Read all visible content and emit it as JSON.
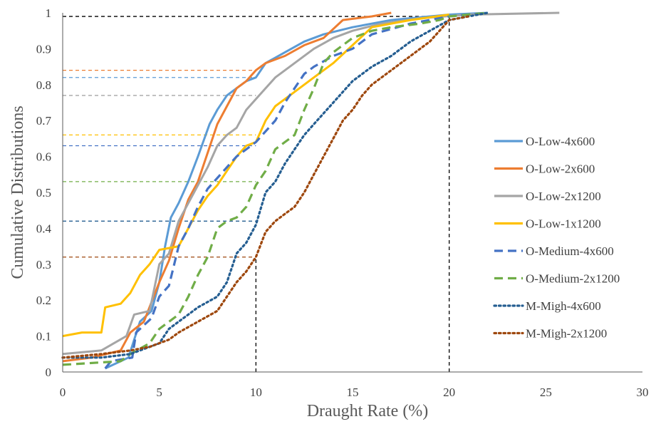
{
  "chart_data": {
    "type": "line",
    "title": "",
    "xlabel": "Draught Rate (%)",
    "ylabel": "Cumulative Distributions",
    "xlim": [
      0,
      30
    ],
    "ylim": [
      0,
      1
    ],
    "x_ticks": [
      "0",
      "5",
      "10",
      "15",
      "20",
      "25",
      "30"
    ],
    "y_ticks": [
      "0",
      "0.1",
      "0.2",
      "0.3",
      "0.4",
      "0.5",
      "0.6",
      "0.7",
      "0.8",
      "0.9",
      "1"
    ],
    "grid": false,
    "legend_position": "right",
    "series": [
      {
        "name": "O-Low-4x600",
        "color": "#5B9BD5",
        "style": "solid",
        "points": [
          [
            2.2,
            0.01
          ],
          [
            3.4,
            0.04
          ],
          [
            4.0,
            0.14
          ],
          [
            4.6,
            0.17
          ],
          [
            5.0,
            0.25
          ],
          [
            5.3,
            0.35
          ],
          [
            5.6,
            0.43
          ],
          [
            6.0,
            0.47
          ],
          [
            6.5,
            0.53
          ],
          [
            7.0,
            0.6
          ],
          [
            7.6,
            0.69
          ],
          [
            8.0,
            0.73
          ],
          [
            8.5,
            0.77
          ],
          [
            9.0,
            0.79
          ],
          [
            9.5,
            0.81
          ],
          [
            10.0,
            0.82
          ],
          [
            10.5,
            0.86
          ],
          [
            11.5,
            0.89
          ],
          [
            12.5,
            0.92
          ],
          [
            13.5,
            0.94
          ],
          [
            15.0,
            0.96
          ],
          [
            17.0,
            0.98
          ],
          [
            20.0,
            0.995
          ],
          [
            22.0,
            1.0
          ]
        ]
      },
      {
        "name": "O-Low-2x600",
        "color": "#ED7D31",
        "style": "solid",
        "points": [
          [
            0.0,
            0.03
          ],
          [
            1.5,
            0.04
          ],
          [
            3.0,
            0.06
          ],
          [
            3.5,
            0.11
          ],
          [
            4.2,
            0.14
          ],
          [
            5.0,
            0.25
          ],
          [
            5.5,
            0.31
          ],
          [
            6.0,
            0.4
          ],
          [
            6.5,
            0.48
          ],
          [
            7.0,
            0.53
          ],
          [
            7.5,
            0.61
          ],
          [
            8.0,
            0.69
          ],
          [
            8.5,
            0.74
          ],
          [
            9.0,
            0.79
          ],
          [
            9.5,
            0.81
          ],
          [
            10.0,
            0.84
          ],
          [
            10.5,
            0.86
          ],
          [
            11.5,
            0.88
          ],
          [
            12.5,
            0.91
          ],
          [
            13.5,
            0.93
          ],
          [
            14.5,
            0.98
          ],
          [
            16.0,
            0.99
          ],
          [
            17.0,
            1.0
          ]
        ]
      },
      {
        "name": "O-Low-2x1200",
        "color": "#A5A5A5",
        "style": "solid",
        "points": [
          [
            0.0,
            0.05
          ],
          [
            2.0,
            0.06
          ],
          [
            3.3,
            0.1
          ],
          [
            3.7,
            0.16
          ],
          [
            4.5,
            0.17
          ],
          [
            5.0,
            0.3
          ],
          [
            5.5,
            0.33
          ],
          [
            6.0,
            0.42
          ],
          [
            6.5,
            0.47
          ],
          [
            7.0,
            0.52
          ],
          [
            7.5,
            0.57
          ],
          [
            8.0,
            0.63
          ],
          [
            8.5,
            0.66
          ],
          [
            9.0,
            0.68
          ],
          [
            9.5,
            0.73
          ],
          [
            10.0,
            0.76
          ],
          [
            11.0,
            0.82
          ],
          [
            12.0,
            0.86
          ],
          [
            13.0,
            0.9
          ],
          [
            14.0,
            0.93
          ],
          [
            15.0,
            0.95
          ],
          [
            16.5,
            0.97
          ],
          [
            18.5,
            0.985
          ],
          [
            21.0,
            0.995
          ],
          [
            25.7,
            1.0
          ]
        ]
      },
      {
        "name": "O-Low-1x1200",
        "color": "#FFC000",
        "style": "solid",
        "points": [
          [
            0.0,
            0.1
          ],
          [
            1.0,
            0.11
          ],
          [
            2.0,
            0.11
          ],
          [
            2.2,
            0.18
          ],
          [
            3.0,
            0.19
          ],
          [
            3.5,
            0.22
          ],
          [
            4.0,
            0.27
          ],
          [
            4.5,
            0.3
          ],
          [
            5.0,
            0.34
          ],
          [
            6.0,
            0.35
          ],
          [
            6.5,
            0.4
          ],
          [
            7.0,
            0.45
          ],
          [
            7.5,
            0.49
          ],
          [
            8.0,
            0.52
          ],
          [
            8.5,
            0.56
          ],
          [
            9.0,
            0.6
          ],
          [
            9.5,
            0.63
          ],
          [
            10.0,
            0.64
          ],
          [
            10.5,
            0.7
          ],
          [
            11.0,
            0.74
          ],
          [
            12.0,
            0.78
          ],
          [
            13.0,
            0.82
          ],
          [
            14.0,
            0.86
          ],
          [
            15.0,
            0.91
          ],
          [
            16.0,
            0.96
          ],
          [
            18.0,
            0.98
          ],
          [
            20.0,
            0.995
          ]
        ]
      },
      {
        "name": "O-Medium-4x600",
        "color": "#4472C4",
        "style": "dash",
        "points": [
          [
            2.2,
            0.01
          ],
          [
            2.5,
            0.03
          ],
          [
            3.6,
            0.04
          ],
          [
            3.8,
            0.11
          ],
          [
            4.6,
            0.15
          ],
          [
            5.0,
            0.21
          ],
          [
            5.5,
            0.24
          ],
          [
            6.0,
            0.35
          ],
          [
            6.5,
            0.4
          ],
          [
            7.0,
            0.46
          ],
          [
            7.5,
            0.51
          ],
          [
            8.0,
            0.54
          ],
          [
            8.5,
            0.57
          ],
          [
            9.0,
            0.6
          ],
          [
            9.5,
            0.62
          ],
          [
            10.0,
            0.64
          ],
          [
            10.5,
            0.67
          ],
          [
            11.0,
            0.7
          ],
          [
            11.5,
            0.75
          ],
          [
            12.0,
            0.79
          ],
          [
            12.5,
            0.83
          ],
          [
            13.0,
            0.85
          ],
          [
            14.0,
            0.88
          ],
          [
            15.0,
            0.9
          ],
          [
            16.0,
            0.94
          ],
          [
            18.0,
            0.97
          ],
          [
            20.0,
            0.99
          ],
          [
            22.0,
            1.0
          ]
        ]
      },
      {
        "name": "O-Medium-2x1200",
        "color": "#70AD47",
        "style": "dash",
        "points": [
          [
            0.0,
            0.02
          ],
          [
            3.0,
            0.03
          ],
          [
            3.5,
            0.05
          ],
          [
            4.5,
            0.08
          ],
          [
            5.0,
            0.12
          ],
          [
            6.0,
            0.16
          ],
          [
            6.5,
            0.21
          ],
          [
            7.0,
            0.27
          ],
          [
            7.5,
            0.32
          ],
          [
            8.0,
            0.4
          ],
          [
            8.5,
            0.42
          ],
          [
            9.0,
            0.43
          ],
          [
            9.5,
            0.46
          ],
          [
            10.0,
            0.52
          ],
          [
            10.5,
            0.56
          ],
          [
            11.0,
            0.62
          ],
          [
            11.5,
            0.64
          ],
          [
            12.0,
            0.66
          ],
          [
            12.5,
            0.73
          ],
          [
            13.0,
            0.79
          ],
          [
            13.5,
            0.86
          ],
          [
            14.0,
            0.89
          ],
          [
            15.0,
            0.93
          ],
          [
            16.0,
            0.95
          ],
          [
            17.0,
            0.96
          ],
          [
            18.5,
            0.97
          ],
          [
            19.5,
            0.98
          ],
          [
            20.0,
            0.99
          ],
          [
            22.0,
            1.0
          ]
        ]
      },
      {
        "name": "M-Migh-4x600",
        "color": "#255E91",
        "style": "dot",
        "points": [
          [
            0.0,
            0.04
          ],
          [
            2.0,
            0.04
          ],
          [
            3.5,
            0.05
          ],
          [
            4.0,
            0.06
          ],
          [
            5.0,
            0.08
          ],
          [
            5.5,
            0.12
          ],
          [
            6.0,
            0.14
          ],
          [
            6.5,
            0.16
          ],
          [
            7.0,
            0.18
          ],
          [
            8.0,
            0.21
          ],
          [
            8.5,
            0.25
          ],
          [
            9.0,
            0.33
          ],
          [
            9.5,
            0.36
          ],
          [
            10.0,
            0.41
          ],
          [
            10.5,
            0.5
          ],
          [
            11.0,
            0.53
          ],
          [
            11.5,
            0.58
          ],
          [
            12.0,
            0.62
          ],
          [
            12.5,
            0.66
          ],
          [
            13.0,
            0.69
          ],
          [
            13.5,
            0.72
          ],
          [
            14.0,
            0.75
          ],
          [
            14.5,
            0.78
          ],
          [
            15.0,
            0.81
          ],
          [
            15.5,
            0.83
          ],
          [
            16.0,
            0.85
          ],
          [
            17.0,
            0.88
          ],
          [
            18.0,
            0.92
          ],
          [
            19.0,
            0.95
          ],
          [
            20.0,
            0.98
          ],
          [
            21.0,
            0.99
          ],
          [
            22.0,
            1.0
          ]
        ]
      },
      {
        "name": "M-Migh-2x1200",
        "color": "#9E480E",
        "style": "dot",
        "points": [
          [
            0.0,
            0.04
          ],
          [
            2.0,
            0.05
          ],
          [
            3.5,
            0.06
          ],
          [
            4.5,
            0.07
          ],
          [
            5.5,
            0.09
          ],
          [
            6.0,
            0.11
          ],
          [
            7.0,
            0.14
          ],
          [
            8.0,
            0.17
          ],
          [
            8.5,
            0.21
          ],
          [
            9.0,
            0.25
          ],
          [
            9.5,
            0.28
          ],
          [
            10.0,
            0.32
          ],
          [
            10.5,
            0.39
          ],
          [
            11.0,
            0.42
          ],
          [
            11.5,
            0.44
          ],
          [
            12.0,
            0.46
          ],
          [
            12.5,
            0.5
          ],
          [
            13.0,
            0.55
          ],
          [
            13.5,
            0.6
          ],
          [
            14.0,
            0.65
          ],
          [
            14.5,
            0.7
          ],
          [
            15.0,
            0.73
          ],
          [
            15.5,
            0.77
          ],
          [
            16.0,
            0.8
          ],
          [
            17.0,
            0.84
          ],
          [
            18.0,
            0.88
          ],
          [
            19.0,
            0.92
          ],
          [
            20.0,
            0.98
          ],
          [
            21.0,
            0.99
          ]
        ]
      }
    ],
    "reference_lines": [
      {
        "type": "horizontal",
        "y": 0.99,
        "x_from": 0,
        "x_to": 20,
        "color": "#000000"
      },
      {
        "type": "vertical",
        "x": 10,
        "y_from": 0,
        "y_to": 0.32,
        "color": "#000000"
      },
      {
        "type": "vertical",
        "x": 20,
        "y_from": 0,
        "y_to": 0.99,
        "color": "#000000"
      },
      {
        "type": "horizontal",
        "y": 0.84,
        "x_from": 0,
        "x_to": 10,
        "color": "#ED7D31"
      },
      {
        "type": "horizontal",
        "y": 0.82,
        "x_from": 0,
        "x_to": 10,
        "color": "#5B9BD5"
      },
      {
        "type": "horizontal",
        "y": 0.77,
        "x_from": 0,
        "x_to": 10,
        "color": "#A5A5A5"
      },
      {
        "type": "horizontal",
        "y": 0.66,
        "x_from": 0,
        "x_to": 10,
        "color": "#FFC000"
      },
      {
        "type": "horizontal",
        "y": 0.63,
        "x_from": 0,
        "x_to": 10,
        "color": "#4472C4"
      },
      {
        "type": "horizontal",
        "y": 0.53,
        "x_from": 0,
        "x_to": 10,
        "color": "#70AD47"
      },
      {
        "type": "horizontal",
        "y": 0.42,
        "x_from": 0,
        "x_to": 10,
        "color": "#255E91"
      },
      {
        "type": "horizontal",
        "y": 0.32,
        "x_from": 0,
        "x_to": 10,
        "color": "#9E480E"
      }
    ]
  }
}
